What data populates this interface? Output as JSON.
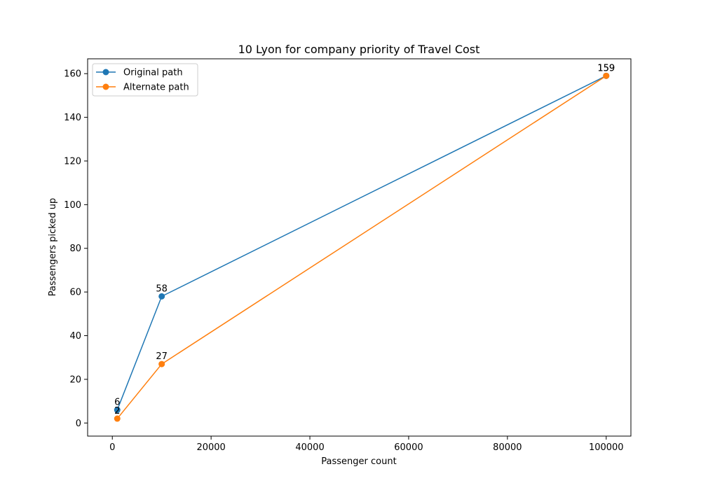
{
  "chart_data": {
    "type": "line",
    "title": "10 Lyon for company priority of Travel Cost",
    "xlabel": "Passenger count",
    "ylabel": "Passengers picked up",
    "xlim": [
      -5000,
      105000
    ],
    "ylim": [
      -6,
      166.8
    ],
    "x_ticks": [
      0,
      20000,
      40000,
      60000,
      80000,
      100000
    ],
    "y_ticks": [
      0,
      20,
      40,
      60,
      80,
      100,
      120,
      140,
      160
    ],
    "grid": false,
    "legend_position": "top-left",
    "x": [
      1000,
      10000,
      100000
    ],
    "series": [
      {
        "name": "Original path",
        "color": "#1f77b4",
        "values": [
          6,
          58,
          159
        ],
        "labels": [
          "6",
          "58",
          "159"
        ]
      },
      {
        "name": "Alternate path",
        "color": "#ff7f0e",
        "values": [
          2,
          27,
          159
        ],
        "labels": [
          "2",
          "27",
          "159"
        ]
      }
    ]
  }
}
